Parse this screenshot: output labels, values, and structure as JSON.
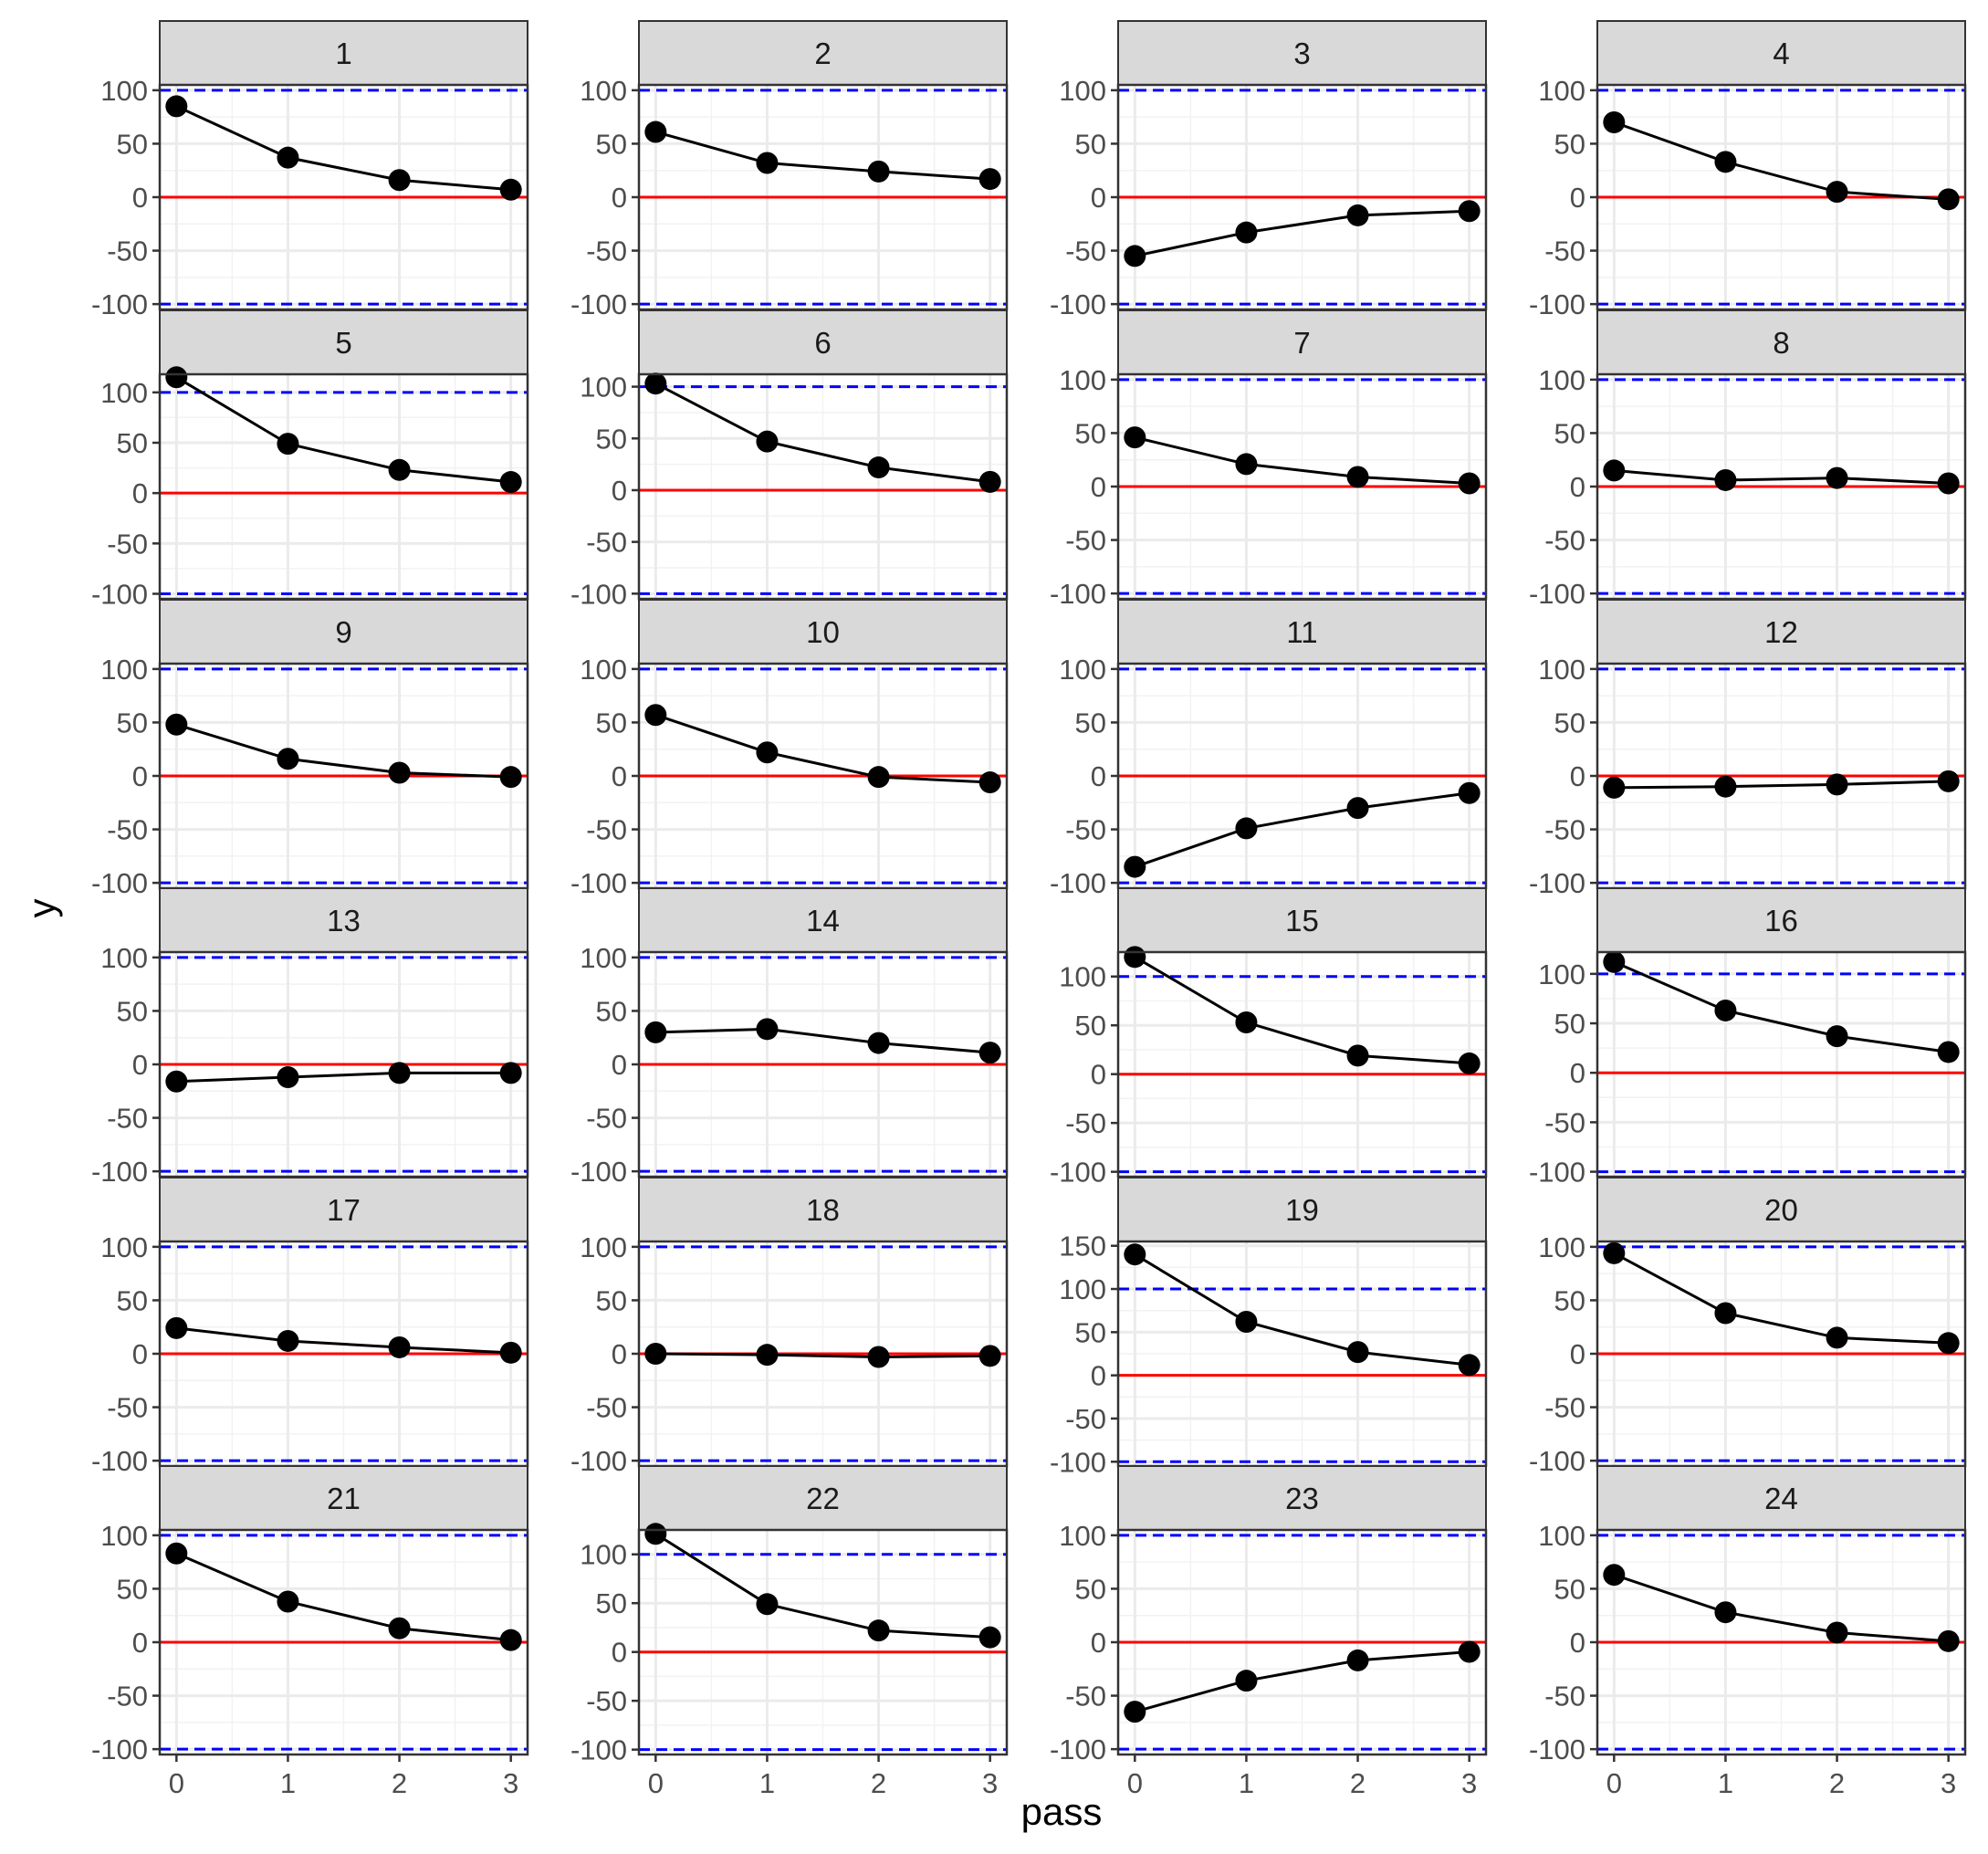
{
  "chart_data": {
    "type": "line",
    "layout": "faceted 6 rows x 4 columns, free y scales",
    "xlabel": "pass",
    "ylabel": "y",
    "x": [
      0,
      1,
      2,
      3
    ],
    "x_ticks": [
      "0",
      "1",
      "2",
      "3"
    ],
    "reference_lines": [
      {
        "y": 0,
        "style": "solid",
        "color": "#ff0000"
      },
      {
        "y": 100,
        "style": "dashed",
        "color": "#0000ff"
      },
      {
        "y": -100,
        "style": "dashed",
        "color": "#0000ff"
      }
    ],
    "grid": true,
    "point_color": "#000000",
    "line_color": "#000000",
    "strip_fill": "#d9d9d9",
    "panels": [
      {
        "label": "1",
        "ylim": [
          -105,
          105
        ],
        "y_ticks": [
          100,
          50,
          0,
          -50,
          -100
        ],
        "values": [
          85,
          37,
          16,
          7
        ]
      },
      {
        "label": "2",
        "ylim": [
          -105,
          105
        ],
        "y_ticks": [
          100,
          50,
          0,
          -50,
          -100
        ],
        "values": [
          61,
          32,
          24,
          17
        ]
      },
      {
        "label": "3",
        "ylim": [
          -105,
          105
        ],
        "y_ticks": [
          100,
          50,
          0,
          -50,
          -100
        ],
        "values": [
          -55,
          -33,
          -17,
          -13
        ]
      },
      {
        "label": "4",
        "ylim": [
          -105,
          105
        ],
        "y_ticks": [
          100,
          50,
          0,
          -50,
          -100
        ],
        "values": [
          70,
          33,
          5,
          -2
        ]
      },
      {
        "label": "5",
        "ylim": [
          -105,
          118
        ],
        "y_ticks": [
          100,
          50,
          0,
          -50,
          -100
        ],
        "values": [
          115,
          49,
          23,
          11
        ]
      },
      {
        "label": "6",
        "ylim": [
          -105,
          112
        ],
        "y_ticks": [
          100,
          50,
          0,
          -50,
          -100
        ],
        "values": [
          103,
          47,
          22,
          8
        ]
      },
      {
        "label": "7",
        "ylim": [
          -105,
          105
        ],
        "y_ticks": [
          100,
          50,
          0,
          -50,
          -100
        ],
        "values": [
          46,
          21,
          9,
          3
        ]
      },
      {
        "label": "8",
        "ylim": [
          -105,
          105
        ],
        "y_ticks": [
          100,
          50,
          0,
          -50,
          -100
        ],
        "values": [
          15,
          6,
          8,
          3
        ]
      },
      {
        "label": "9",
        "ylim": [
          -105,
          105
        ],
        "y_ticks": [
          100,
          50,
          0,
          -50,
          -100
        ],
        "values": [
          48,
          16,
          3,
          -1
        ]
      },
      {
        "label": "10",
        "ylim": [
          -105,
          105
        ],
        "y_ticks": [
          100,
          50,
          0,
          -50,
          -100
        ],
        "values": [
          57,
          22,
          -1,
          -6
        ]
      },
      {
        "label": "11",
        "ylim": [
          -105,
          105
        ],
        "y_ticks": [
          100,
          50,
          0,
          -50,
          -100
        ],
        "values": [
          -85,
          -49,
          -30,
          -16
        ]
      },
      {
        "label": "12",
        "ylim": [
          -105,
          105
        ],
        "y_ticks": [
          100,
          50,
          0,
          -50,
          -100
        ],
        "values": [
          -11,
          -10,
          -8,
          -5
        ]
      },
      {
        "label": "13",
        "ylim": [
          -105,
          105
        ],
        "y_ticks": [
          100,
          50,
          0,
          -50,
          -100
        ],
        "values": [
          -16,
          -12,
          -8,
          -8
        ]
      },
      {
        "label": "14",
        "ylim": [
          -105,
          105
        ],
        "y_ticks": [
          100,
          50,
          0,
          -50,
          -100
        ],
        "values": [
          30,
          33,
          20,
          11
        ]
      },
      {
        "label": "15",
        "ylim": [
          -105,
          125
        ],
        "y_ticks": [
          100,
          50,
          0,
          -50,
          -100
        ],
        "values": [
          120,
          53,
          19,
          11
        ]
      },
      {
        "label": "16",
        "ylim": [
          -105,
          122
        ],
        "y_ticks": [
          100,
          50,
          0,
          -50,
          -100
        ],
        "values": [
          112,
          63,
          37,
          21
        ]
      },
      {
        "label": "17",
        "ylim": [
          -105,
          105
        ],
        "y_ticks": [
          100,
          50,
          0,
          -50,
          -100
        ],
        "values": [
          24,
          12,
          6,
          1
        ]
      },
      {
        "label": "18",
        "ylim": [
          -105,
          105
        ],
        "y_ticks": [
          100,
          50,
          0,
          -50,
          -100
        ],
        "values": [
          0,
          -1,
          -3,
          -2
        ]
      },
      {
        "label": "19",
        "ylim": [
          -105,
          155
        ],
        "y_ticks": [
          150,
          100,
          50,
          0,
          -50,
          -100
        ],
        "values": [
          140,
          62,
          27,
          12
        ]
      },
      {
        "label": "20",
        "ylim": [
          -105,
          105
        ],
        "y_ticks": [
          100,
          50,
          0,
          -50,
          -100
        ],
        "values": [
          94,
          38,
          15,
          10
        ]
      },
      {
        "label": "21",
        "ylim": [
          -105,
          105
        ],
        "y_ticks": [
          100,
          50,
          0,
          -50,
          -100
        ],
        "values": [
          83,
          38,
          13,
          2
        ]
      },
      {
        "label": "22",
        "ylim": [
          -105,
          125
        ],
        "y_ticks": [
          100,
          50,
          0,
          -50,
          -100
        ],
        "values": [
          121,
          49,
          22,
          15
        ]
      },
      {
        "label": "23",
        "ylim": [
          -105,
          105
        ],
        "y_ticks": [
          100,
          50,
          0,
          -50,
          -100
        ],
        "values": [
          -65,
          -36,
          -17,
          -9
        ]
      },
      {
        "label": "24",
        "ylim": [
          -105,
          105
        ],
        "y_ticks": [
          100,
          50,
          0,
          -50,
          -100
        ],
        "values": [
          63,
          28,
          9,
          1
        ]
      }
    ]
  }
}
